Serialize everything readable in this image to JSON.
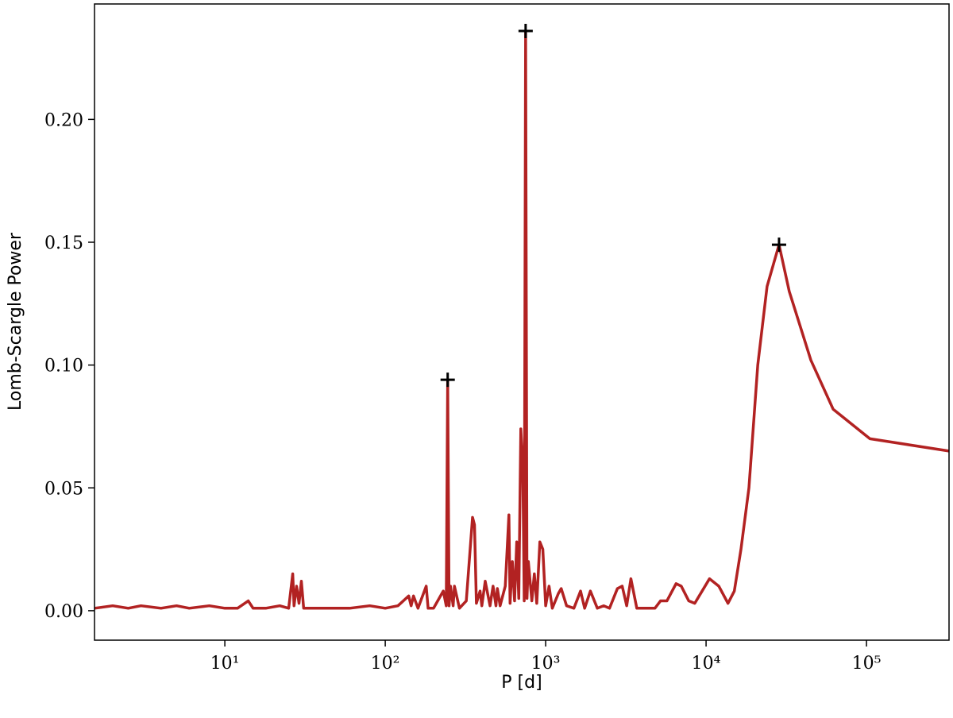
{
  "chart_data": {
    "type": "line",
    "xlabel": "P [d]",
    "ylabel": "Lomb-Scargle Power",
    "xscale": "log",
    "xlim": [
      1.54,
      327000
    ],
    "ylim": [
      -0.012,
      0.247
    ],
    "xticks": [
      {
        "value": 10,
        "label": "10¹"
      },
      {
        "value": 100,
        "label": "10²"
      },
      {
        "value": 1000,
        "label": "10³"
      },
      {
        "value": 10000,
        "label": "10⁴"
      },
      {
        "value": 100000,
        "label": "10⁵"
      }
    ],
    "yticks": [
      {
        "value": 0,
        "label": "0.00"
      },
      0.05,
      {
        "value": 0.1,
        "label": "0.10"
      },
      0.15,
      {
        "value": 0.2,
        "label": "0.20"
      }
    ],
    "series": [
      {
        "color": "#b22222",
        "style": "line",
        "x": [
          1.54,
          2,
          2.5,
          3,
          4,
          5,
          6,
          8,
          10,
          12,
          14,
          15,
          18,
          22,
          25,
          26.5,
          27,
          28,
          29,
          30,
          31,
          33,
          40,
          60,
          80,
          100,
          120,
          140,
          145,
          150,
          160,
          180,
          185,
          200,
          230,
          240,
          245,
          250,
          255,
          265,
          270,
          290,
          320,
          350,
          360,
          370,
          390,
          400,
          420,
          450,
          470,
          490,
          500,
          520,
          560,
          590,
          600,
          620,
          640,
          660,
          680,
          700,
          720,
          735,
          750,
          765,
          780,
          820,
          850,
          880,
          920,
          960,
          1000,
          1050,
          1100,
          1200,
          1250,
          1350,
          1500,
          1650,
          1750,
          1900,
          2100,
          2300,
          2500,
          2800,
          3000,
          3200,
          3400,
          3700,
          4200,
          4800,
          5200,
          5700,
          6500,
          7000,
          7800,
          8500,
          10500,
          12000,
          13700,
          15000,
          16500,
          18500,
          21000,
          24000,
          28500,
          33000,
          45000,
          62000,
          105000,
          327000
        ],
        "values": [
          0.001,
          0.002,
          0.001,
          0.002,
          0.001,
          0.002,
          0.001,
          0.002,
          0.001,
          0.001,
          0.004,
          0.001,
          0.001,
          0.002,
          0.001,
          0.015,
          0.002,
          0.01,
          0.003,
          0.012,
          0.001,
          0.001,
          0.001,
          0.001,
          0.002,
          0.001,
          0.002,
          0.006,
          0.002,
          0.006,
          0.001,
          0.01,
          0.001,
          0.001,
          0.008,
          0.002,
          0.094,
          0.002,
          0.01,
          0.002,
          0.01,
          0.001,
          0.004,
          0.038,
          0.035,
          0.003,
          0.008,
          0.002,
          0.012,
          0.002,
          0.01,
          0.002,
          0.009,
          0.002,
          0.01,
          0.039,
          0.003,
          0.02,
          0.004,
          0.028,
          0.005,
          0.074,
          0.06,
          0.004,
          0.236,
          0.005,
          0.02,
          0.004,
          0.015,
          0.003,
          0.028,
          0.025,
          0.002,
          0.01,
          0.001,
          0.007,
          0.009,
          0.002,
          0.001,
          0.008,
          0.001,
          0.008,
          0.001,
          0.002,
          0.001,
          0.009,
          0.01,
          0.002,
          0.013,
          0.001,
          0.001,
          0.001,
          0.004,
          0.004,
          0.011,
          0.01,
          0.004,
          0.003,
          0.013,
          0.01,
          0.003,
          0.008,
          0.025,
          0.05,
          0.1,
          0.132,
          0.149,
          0.13,
          0.102,
          0.082,
          0.07,
          0.065
        ]
      },
      {
        "color": "#000000",
        "style": "marker",
        "marker": "+",
        "x": [
          245,
          750,
          28500
        ],
        "values": [
          0.094,
          0.236,
          0.149
        ]
      }
    ]
  }
}
